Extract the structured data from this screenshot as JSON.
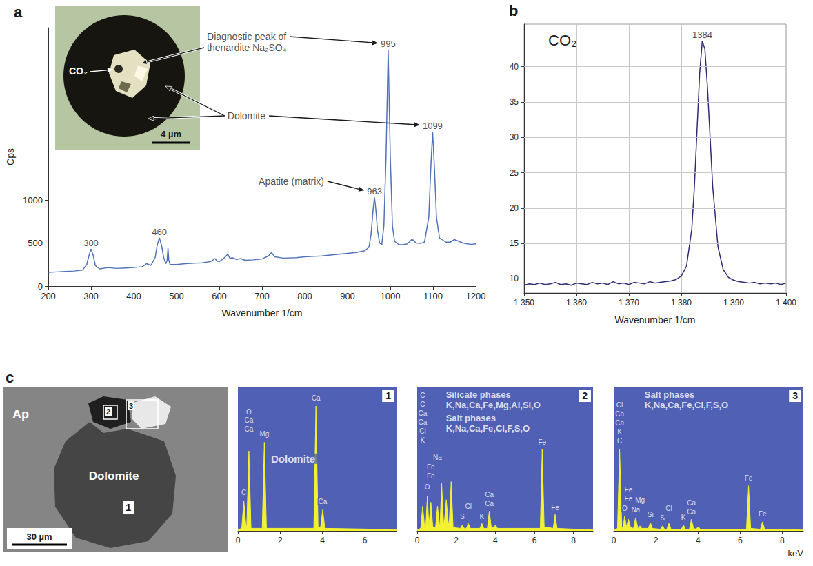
{
  "chart_data": [
    {
      "panel": "a",
      "type": "line",
      "color": "#4f72b8",
      "x_label": "Wavenumber 1/cm",
      "y_label": "Cps",
      "x": [
        200,
        220,
        240,
        260,
        280,
        290,
        295,
        300,
        305,
        310,
        320,
        340,
        360,
        380,
        400,
        420,
        430,
        440,
        450,
        455,
        460,
        465,
        470,
        475,
        478,
        480,
        482,
        485,
        500,
        520,
        540,
        560,
        580,
        590,
        595,
        600,
        610,
        620,
        625,
        630,
        640,
        650,
        660,
        680,
        700,
        715,
        722,
        730,
        750,
        780,
        800,
        820,
        840,
        860,
        880,
        900,
        920,
        940,
        950,
        955,
        960,
        963,
        966,
        970,
        975,
        980,
        985,
        990,
        995,
        1000,
        1005,
        1010,
        1020,
        1030,
        1040,
        1050,
        1055,
        1060,
        1070,
        1080,
        1090,
        1095,
        1099,
        1103,
        1108,
        1115,
        1130,
        1140,
        1150,
        1160,
        1170,
        1180,
        1190,
        1200
      ],
      "values": [
        160,
        165,
        170,
        175,
        185,
        250,
        350,
        430,
        360,
        240,
        200,
        215,
        205,
        210,
        215,
        225,
        260,
        240,
        330,
        480,
        560,
        470,
        330,
        260,
        300,
        440,
        300,
        250,
        250,
        260,
        265,
        270,
        285,
        320,
        290,
        285,
        320,
        370,
        320,
        330,
        310,
        320,
        300,
        305,
        315,
        350,
        390,
        340,
        325,
        330,
        340,
        345,
        350,
        360,
        370,
        380,
        390,
        410,
        450,
        600,
        900,
        1030,
        900,
        650,
        500,
        480,
        700,
        1500,
        2740,
        1500,
        700,
        520,
        480,
        480,
        490,
        540,
        530,
        500,
        495,
        510,
        800,
        1400,
        1790,
        1400,
        800,
        560,
        510,
        510,
        540,
        520,
        500,
        490,
        485,
        490
      ],
      "xlim": [
        200,
        1200
      ],
      "xticks": [
        200,
        300,
        400,
        500,
        600,
        700,
        800,
        900,
        1000,
        1100,
        1200
      ],
      "ylim": [
        0,
        3000
      ],
      "yticks": [
        0,
        500,
        1000
      ],
      "grid": false,
      "annotations": [
        {
          "text": "300",
          "x": 300,
          "y": 430
        },
        {
          "text": "460",
          "x": 460,
          "y": 560
        },
        {
          "text": "963",
          "x": 963,
          "y": 1030
        },
        {
          "text": "995",
          "x": 995,
          "y": 2740
        },
        {
          "text": "1099",
          "x": 1099,
          "y": 1790
        },
        {
          "text": "Apatite (matrix)",
          "x": 692,
          "y": 1280,
          "points_to": 963
        },
        {
          "text": "Diagnostic peak of thenardite Na₂SO₄",
          "x": 571,
          "y": 2960,
          "points_to": 995,
          "points_into_inset": 1
        },
        {
          "text": "Dolomite",
          "x": 619,
          "y": 2040,
          "points_to": 1099,
          "points_into_inset": 2
        }
      ],
      "inset": {
        "label": "CO₂",
        "scale_bar": "4 µm"
      }
    },
    {
      "panel": "b",
      "type": "line",
      "color": "#2e2a74",
      "title": "CO₂",
      "x_label": "Wavenumber 1/cm",
      "x": [
        1350,
        1351,
        1352,
        1353,
        1354,
        1355,
        1356,
        1357,
        1358,
        1359,
        1360,
        1361,
        1362,
        1363,
        1364,
        1365,
        1366,
        1367,
        1368,
        1369,
        1370,
        1371,
        1372,
        1373,
        1374,
        1375,
        1376,
        1377,
        1378,
        1379,
        1380,
        1381,
        1382,
        1382.5,
        1383,
        1383.5,
        1384,
        1384.5,
        1385,
        1385.5,
        1386,
        1387,
        1388,
        1389,
        1390,
        1391,
        1392,
        1393,
        1394,
        1395,
        1396,
        1397,
        1398,
        1399,
        1400
      ],
      "values": [
        9.1,
        9.3,
        9.2,
        9.4,
        9.2,
        9.3,
        9.5,
        9.2,
        9.3,
        9.1,
        9.4,
        9.3,
        9.2,
        9.5,
        9.3,
        9.4,
        9.2,
        9.6,
        9.3,
        9.4,
        9.2,
        9.5,
        9.4,
        9.3,
        9.6,
        9.4,
        9.5,
        9.6,
        9.7,
        9.9,
        10.4,
        11.8,
        17,
        23,
        31,
        39,
        43.6,
        42.5,
        37,
        30,
        23,
        14.5,
        11.3,
        10.2,
        9.8,
        9.6,
        9.5,
        9.4,
        9.5,
        9.3,
        9.4,
        9.3,
        9.4,
        9.2,
        9.4
      ],
      "xlim": [
        1350,
        1400
      ],
      "xticks": [
        {
          "value": 1350,
          "label": "1 350"
        },
        {
          "value": 1360,
          "label": "1 360"
        },
        {
          "value": 1370,
          "label": "1 370"
        },
        {
          "value": 1380,
          "label": "1 380"
        },
        {
          "value": 1390,
          "label": "1 390"
        },
        {
          "value": 1400,
          "label": "1 400"
        }
      ],
      "ylim": [
        8,
        46
      ],
      "yticks": [
        10,
        15,
        20,
        25,
        30,
        35,
        40
      ],
      "grid": true,
      "annotations": [
        {
          "text": "1384",
          "x": 1384,
          "y": 43.6
        }
      ]
    },
    {
      "panel": "1",
      "type": "area",
      "color": "#f4f22e",
      "x": [
        0,
        0.18,
        0.28,
        0.38,
        0.42,
        0.52,
        0.62,
        1.15,
        1.25,
        1.35,
        3.59,
        3.69,
        3.79,
        3.91,
        4.01,
        4.11,
        7.5
      ],
      "values": [
        1,
        2,
        24,
        4,
        4,
        64,
        2,
        2,
        71,
        2,
        2,
        100,
        3,
        3,
        17,
        2,
        1
      ],
      "xlim": [
        0,
        7.5
      ],
      "xticks": [
        0,
        2,
        4,
        6
      ],
      "ylim": [
        0,
        115
      ],
      "tick_labels": "x",
      "annotations": [
        {
          "text": "C",
          "x": 0.28,
          "y": 27
        },
        {
          "text": "O",
          "x": 0.52,
          "y": 92
        },
        {
          "text": "Ca",
          "x": 0.52,
          "y": 85
        },
        {
          "text": "Ca",
          "x": 0.52,
          "y": 78
        },
        {
          "text": "Mg",
          "x": 1.25,
          "y": 74
        },
        {
          "text": "Ca",
          "x": 3.69,
          "y": 103
        },
        {
          "text": "Ca",
          "x": 4.01,
          "y": 20
        }
      ],
      "captions": [
        {
          "text": "Dolomite",
          "x": 1.5,
          "y": 62
        }
      ]
    },
    {
      "panel": "2",
      "type": "area",
      "color": "#f4f22e",
      "x": [
        0,
        0.18,
        0.28,
        0.38,
        0.44,
        0.52,
        0.6,
        0.62,
        0.7,
        0.8,
        0.94,
        1.04,
        1.14,
        1.17,
        1.25,
        1.35,
        1.39,
        1.49,
        1.59,
        1.64,
        1.74,
        1.84,
        2.21,
        2.31,
        2.41,
        2.52,
        2.62,
        2.72,
        3.21,
        3.31,
        3.41,
        3.59,
        3.69,
        3.79,
        3.91,
        4.01,
        4.11,
        6.3,
        6.4,
        6.5,
        6.96,
        7.06,
        7.16,
        9
      ],
      "values": [
        1,
        3,
        30,
        5,
        5,
        42,
        6,
        6,
        35,
        5,
        4,
        30,
        8,
        8,
        58,
        10,
        10,
        38,
        10,
        10,
        60,
        4,
        3,
        7,
        3,
        3,
        9,
        3,
        3,
        9,
        3,
        3,
        24,
        5,
        4,
        7,
        3,
        3,
        100,
        5,
        3,
        20,
        3,
        1
      ],
      "xlim": [
        0,
        9
      ],
      "xticks": [
        0,
        2,
        4,
        6,
        8
      ],
      "ylim": [
        0,
        175
      ],
      "tick_labels": "x",
      "annotations": [
        {
          "text": "C",
          "x": 0.28,
          "y": 160
        },
        {
          "text": "C",
          "x": 0.28,
          "y": 149
        },
        {
          "text": "Ca",
          "x": 0.28,
          "y": 138
        },
        {
          "text": "Ca",
          "x": 0.28,
          "y": 127
        },
        {
          "text": "Cl",
          "x": 0.28,
          "y": 116
        },
        {
          "text": "K",
          "x": 0.28,
          "y": 105
        },
        {
          "text": "Na",
          "x": 1.04,
          "y": 84
        },
        {
          "text": "Fe",
          "x": 0.7,
          "y": 72
        },
        {
          "text": "Fe",
          "x": 0.7,
          "y": 61
        },
        {
          "text": "O",
          "x": 0.52,
          "y": 48
        },
        {
          "text": "S",
          "x": 2.31,
          "y": 12
        },
        {
          "text": "Cl",
          "x": 2.62,
          "y": 24
        },
        {
          "text": "K",
          "x": 3.31,
          "y": 12
        },
        {
          "text": "Ca",
          "x": 3.69,
          "y": 39
        },
        {
          "text": "Ca",
          "x": 3.69,
          "y": 28
        },
        {
          "text": "Fe",
          "x": 6.4,
          "y": 103
        },
        {
          "text": "Fe",
          "x": 7.06,
          "y": 23
        }
      ],
      "captions": [
        {
          "text": "Silicate phases",
          "x": 1.4,
          "y": 172
        },
        {
          "text": "K,Na,Ca,Fe,Mg,Al,Si,O",
          "x": 1.4,
          "y": 159
        },
        {
          "text": "Salt phases",
          "x": 1.4,
          "y": 143
        },
        {
          "text": "K,Na,Ca,Fe,Cl,F,S,O",
          "x": 1.4,
          "y": 130
        }
      ]
    },
    {
      "panel": "3",
      "type": "area",
      "color": "#f4f22e",
      "x_label": "keV",
      "x": [
        0,
        0.18,
        0.28,
        0.38,
        0.44,
        0.52,
        0.6,
        0.62,
        0.7,
        0.8,
        0.94,
        1.04,
        1.14,
        1.17,
        1.25,
        1.33,
        1.64,
        1.74,
        1.84,
        2.21,
        2.31,
        2.41,
        2.52,
        2.62,
        2.72,
        3.21,
        3.31,
        3.41,
        3.59,
        3.69,
        3.79,
        3.91,
        4.01,
        4.11,
        6.3,
        6.4,
        6.5,
        6.96,
        7.06,
        7.16,
        9
      ],
      "values": [
        1,
        3,
        100,
        5,
        4,
        18,
        5,
        5,
        14,
        4,
        3,
        16,
        4,
        3,
        6,
        3,
        3,
        10,
        3,
        2,
        6,
        2,
        2,
        9,
        2,
        2,
        7,
        2,
        2,
        14,
        3,
        2,
        5,
        2,
        2,
        55,
        3,
        2,
        11,
        2,
        1
      ],
      "xlim": [
        0,
        9
      ],
      "xticks": [
        0,
        2,
        4,
        6,
        8
      ],
      "ylim": [
        0,
        175
      ],
      "tick_labels": "x",
      "annotations": [
        {
          "text": "Cl",
          "x": 0.28,
          "y": 148
        },
        {
          "text": "Ca",
          "x": 0.28,
          "y": 137
        },
        {
          "text": "Ca",
          "x": 0.28,
          "y": 126
        },
        {
          "text": "K",
          "x": 0.28,
          "y": 115
        },
        {
          "text": "C",
          "x": 0.28,
          "y": 104
        },
        {
          "text": "O",
          "x": 0.52,
          "y": 22
        },
        {
          "text": "Na",
          "x": 1.04,
          "y": 20
        },
        {
          "text": "Fe",
          "x": 0.7,
          "y": 45
        },
        {
          "text": "Fe",
          "x": 0.7,
          "y": 34
        },
        {
          "text": "Mg",
          "x": 1.25,
          "y": 32
        },
        {
          "text": "Si",
          "x": 1.74,
          "y": 14
        },
        {
          "text": "S",
          "x": 2.31,
          "y": 10
        },
        {
          "text": "Cl",
          "x": 2.62,
          "y": 22
        },
        {
          "text": "K",
          "x": 3.31,
          "y": 11
        },
        {
          "text": "Ca",
          "x": 3.69,
          "y": 29
        },
        {
          "text": "Ca",
          "x": 3.69,
          "y": 18
        },
        {
          "text": "Fe",
          "x": 6.4,
          "y": 59
        },
        {
          "text": "Fe",
          "x": 7.06,
          "y": 15
        }
      ],
      "captions": [
        {
          "text": "Salt phases",
          "x": 1.4,
          "y": 172
        },
        {
          "text": "K,Na,Ca,Fe,Cl,F,S,O",
          "x": 1.4,
          "y": 159
        }
      ]
    }
  ],
  "image": {
    "panel": "c",
    "labels": [
      "Ap",
      "Dolomite"
    ],
    "regions": [
      "1",
      "2",
      "3"
    ],
    "scale_bar": "30 µm"
  }
}
